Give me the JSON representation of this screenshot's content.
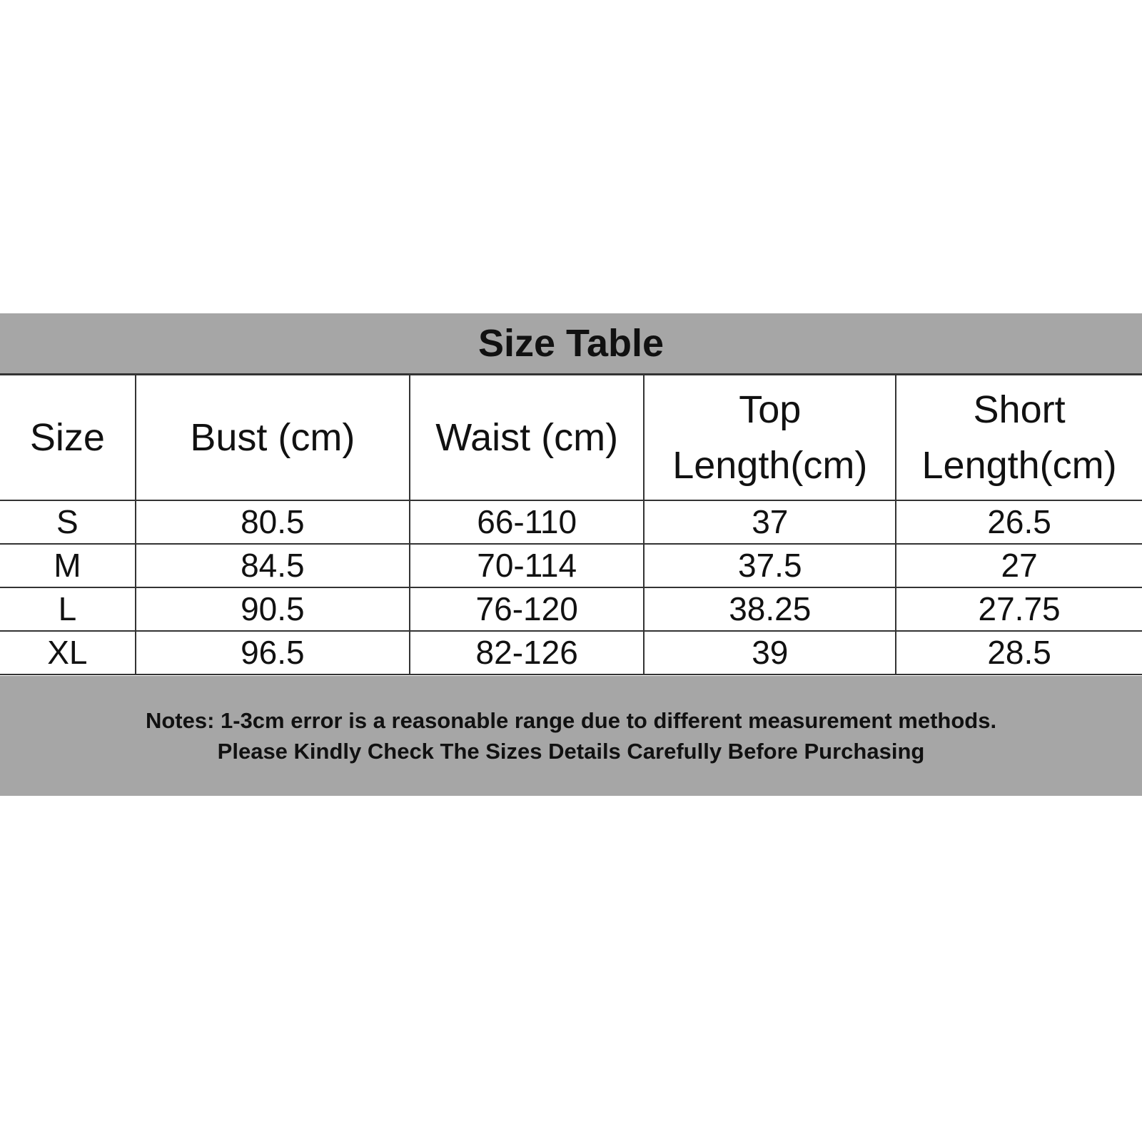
{
  "title": "Size Table",
  "columns": [
    "Size",
    "Bust (cm)",
    "Waist (cm)",
    "Top Length(cm)",
    "Short Length(cm)"
  ],
  "columns_display": [
    [
      "Size"
    ],
    [
      "Bust (cm)"
    ],
    [
      "Waist (cm)"
    ],
    [
      "Top",
      "Length(cm)"
    ],
    [
      "Short",
      "Length(cm)"
    ]
  ],
  "rows": [
    [
      "S",
      "80.5",
      "66-110",
      "37",
      "26.5"
    ],
    [
      "M",
      "84.5",
      "70-114",
      "37.5",
      "27"
    ],
    [
      "L",
      "90.5",
      "76-120",
      "38.25",
      "27.75"
    ],
    [
      "XL",
      "96.5",
      "82-126",
      "39",
      "28.5"
    ]
  ],
  "notes": [
    "Notes: 1-3cm error is a reasonable range due to different measurement methods.",
    "Please Kindly Check The Sizes Details Carefully Before Purchasing"
  ],
  "colors": {
    "band": "#a6a6a6",
    "border": "#333333"
  }
}
